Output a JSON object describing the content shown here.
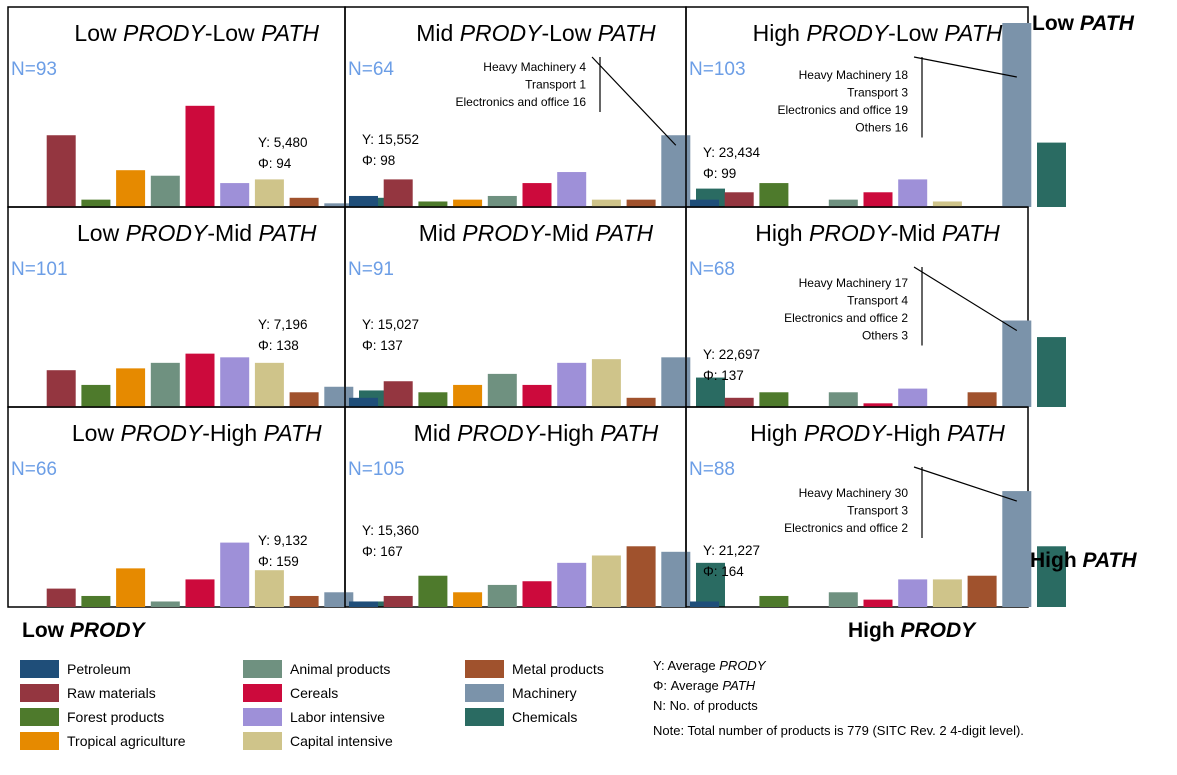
{
  "chart_data": {
    "type": "bar",
    "categories": [
      "Petroleum",
      "Raw materials",
      "Forest products",
      "Tropical agriculture",
      "Animal products",
      "Cereals",
      "Labor intensive",
      "Capital intensive",
      "Metal products",
      "Machinery",
      "Chemicals"
    ],
    "colors": [
      "#1f4e79",
      "#943640",
      "#4e7a2c",
      "#e68a00",
      "#6f9180",
      "#cc0a3c",
      "#9e90d8",
      "#cfc48a",
      "#a0522d",
      "#7b93aa",
      "#2a6b62"
    ],
    "ylim": [
      0,
      100
    ],
    "panels": [
      {
        "id": "low-prody-low-path",
        "title_parts": [
          {
            "text": "Low ",
            "italic": false
          },
          {
            "text": "PRODY",
            "italic": true
          },
          {
            "text": "-Low ",
            "italic": false
          },
          {
            "text": "PATH",
            "italic": true
          }
        ],
        "n_label": "N=93",
        "y_label": "Y: 5,480",
        "phi_label": "Φ: 94",
        "callout": [],
        "values": [
          0,
          39,
          4,
          20,
          17,
          55,
          13,
          15,
          5,
          2,
          5
        ]
      },
      {
        "id": "mid-prody-low-path",
        "title_parts": [
          {
            "text": "Mid ",
            "italic": false
          },
          {
            "text": "PRODY",
            "italic": true
          },
          {
            "text": "-Low ",
            "italic": false
          },
          {
            "text": "PATH",
            "italic": true
          }
        ],
        "n_label": "N=64",
        "y_label": "Y: 15,552",
        "phi_label": "Φ: 98",
        "callout": [
          "Heavy Machinery 4",
          "Transport 1",
          "Electronics and office 16"
        ],
        "values": [
          6,
          15,
          3,
          4,
          6,
          13,
          19,
          4,
          4,
          39,
          10
        ]
      },
      {
        "id": "high-prody-low-path",
        "title_parts": [
          {
            "text": "High ",
            "italic": false
          },
          {
            "text": "PRODY",
            "italic": true
          },
          {
            "text": "-Low ",
            "italic": false
          },
          {
            "text": "PATH",
            "italic": true
          }
        ],
        "n_label": "N=103",
        "y_label": "Y: 23,434",
        "phi_label": "Φ: 99",
        "callout": [
          "Heavy Machinery 18",
          "Transport 3",
          "Electronics and office 19",
          "Others 16"
        ],
        "values": [
          4,
          8,
          13,
          0,
          4,
          8,
          15,
          3,
          0,
          100,
          35
        ]
      },
      {
        "id": "low-prody-mid-path",
        "title_parts": [
          {
            "text": "Low ",
            "italic": false
          },
          {
            "text": "PRODY",
            "italic": true
          },
          {
            "text": "-Mid ",
            "italic": false
          },
          {
            "text": "PATH",
            "italic": true
          }
        ],
        "n_label": "N=101",
        "y_label": "Y: 7,196",
        "phi_label": "Φ: 138",
        "callout": [],
        "values": [
          0,
          20,
          12,
          21,
          24,
          29,
          27,
          24,
          8,
          11,
          9
        ]
      },
      {
        "id": "mid-prody-mid-path",
        "title_parts": [
          {
            "text": "Mid ",
            "italic": false
          },
          {
            "text": "PRODY",
            "italic": true
          },
          {
            "text": "-Mid ",
            "italic": false
          },
          {
            "text": "PATH",
            "italic": true
          }
        ],
        "n_label": "N=91",
        "y_label": "Y: 15,027",
        "phi_label": "Φ: 137",
        "callout": [],
        "values": [
          5,
          14,
          8,
          12,
          18,
          12,
          24,
          26,
          5,
          27,
          16
        ]
      },
      {
        "id": "high-prody-mid-path",
        "title_parts": [
          {
            "text": "High ",
            "italic": false
          },
          {
            "text": "PRODY",
            "italic": true
          },
          {
            "text": "-Mid ",
            "italic": false
          },
          {
            "text": "PATH",
            "italic": true
          }
        ],
        "n_label": "N=68",
        "y_label": "Y: 22,697",
        "phi_label": "Φ: 137",
        "callout": [
          "Heavy Machinery 17",
          "Transport 4",
          "Electronics and office 2",
          "Others 3"
        ],
        "values": [
          0,
          5,
          8,
          0,
          8,
          2,
          10,
          0,
          8,
          47,
          38
        ]
      },
      {
        "id": "low-prody-high-path",
        "title_parts": [
          {
            "text": "Low ",
            "italic": false
          },
          {
            "text": "PRODY",
            "italic": true
          },
          {
            "text": "-High ",
            "italic": false
          },
          {
            "text": "PATH",
            "italic": true
          }
        ],
        "n_label": "N=66",
        "y_label": "Y: 9,132",
        "phi_label": "Φ: 159",
        "callout": [],
        "values": [
          0,
          10,
          6,
          21,
          3,
          15,
          35,
          20,
          6,
          8,
          3
        ]
      },
      {
        "id": "mid-prody-high-path",
        "title_parts": [
          {
            "text": "Mid ",
            "italic": false
          },
          {
            "text": "PRODY",
            "italic": true
          },
          {
            "text": "-High ",
            "italic": false
          },
          {
            "text": "PATH",
            "italic": true
          }
        ],
        "n_label": "N=105",
        "y_label": "Y: 15,360",
        "phi_label": "Φ: 167",
        "callout": [],
        "values": [
          3,
          6,
          17,
          8,
          12,
          14,
          24,
          28,
          33,
          30,
          24
        ]
      },
      {
        "id": "high-prody-high-path",
        "title_parts": [
          {
            "text": "High ",
            "italic": false
          },
          {
            "text": "PRODY",
            "italic": true
          },
          {
            "text": "-High ",
            "italic": false
          },
          {
            "text": "PATH",
            "italic": true
          }
        ],
        "n_label": "N=88",
        "y_label": "Y: 21,227",
        "phi_label": "Φ: 164",
        "callout": [
          "Heavy Machinery 30",
          "Transport 3",
          "Electronics and office 2"
        ],
        "values": [
          3,
          0,
          6,
          0,
          8,
          4,
          15,
          15,
          17,
          63,
          33
        ]
      }
    ],
    "corner_labels": {
      "low_path": [
        {
          "text": "Low ",
          "italic": false
        },
        {
          "text": "PATH",
          "italic": true
        }
      ],
      "high_path": [
        {
          "text": "High ",
          "italic": false
        },
        {
          "text": "PATH",
          "italic": true
        }
      ],
      "low_prody": [
        {
          "text": "Low ",
          "italic": false
        },
        {
          "text": "PRODY",
          "italic": true
        }
      ],
      "high_prody": [
        {
          "text": "High ",
          "italic": false
        },
        {
          "text": "PRODY",
          "italic": true
        }
      ]
    },
    "key_lines": [
      [
        {
          "text": "Y: Average ",
          "italic": false
        },
        {
          "text": "PRODY",
          "italic": true
        }
      ],
      [
        {
          "text": "Φ: Average ",
          "italic": false
        },
        {
          "text": "PATH",
          "italic": true
        }
      ],
      [
        {
          "text": "N: No. of products",
          "italic": false
        }
      ]
    ],
    "note": "Note: Total number of products is 779 (SITC Rev. 2 4-digit level).",
    "legend_position": "bottom"
  }
}
